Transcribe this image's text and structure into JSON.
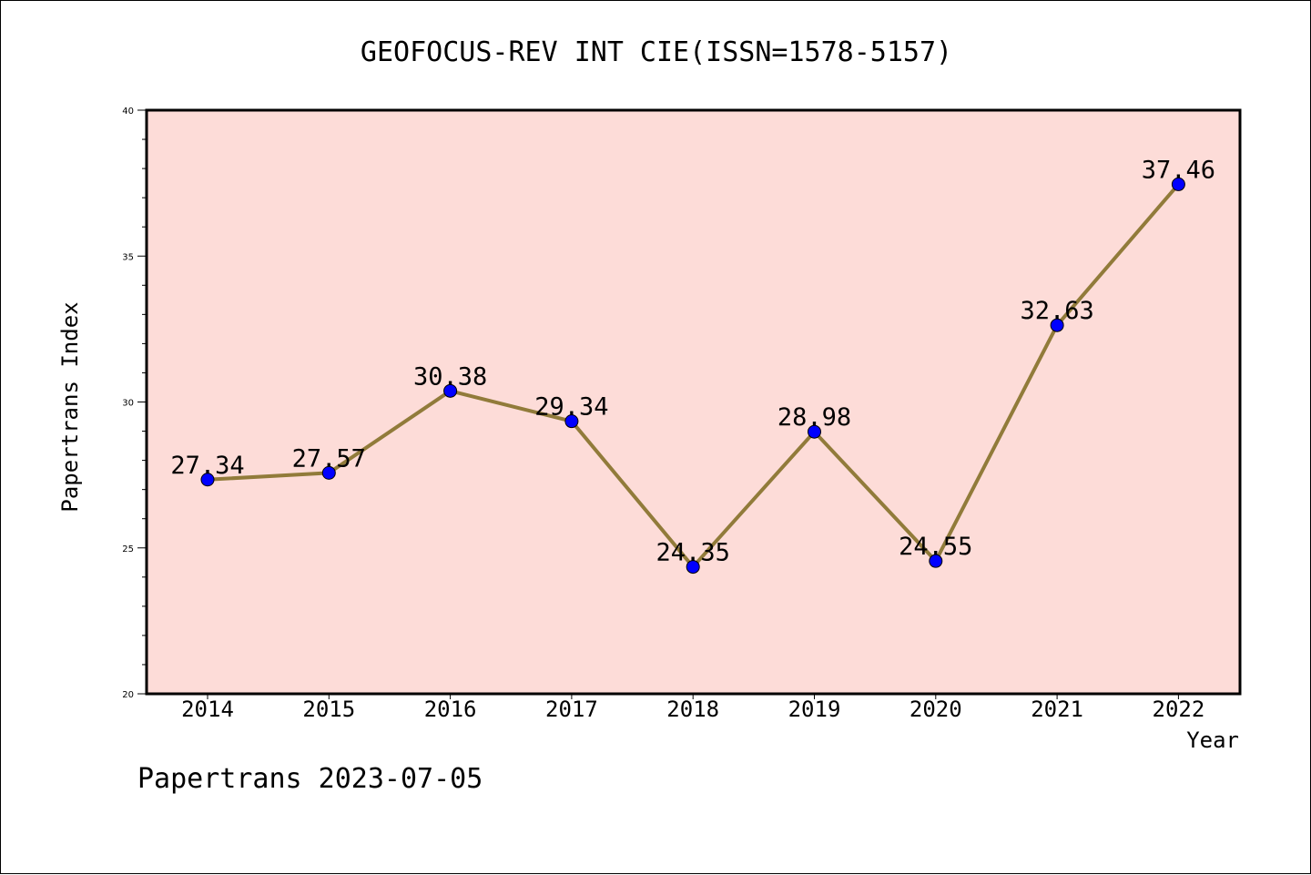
{
  "chart_data": {
    "type": "line",
    "title": "GEOFOCUS-REV INT CIE(ISSN=1578-5157)",
    "xlabel": "Year",
    "ylabel": "Papertrans Index",
    "categories": [
      "2014",
      "2015",
      "2016",
      "2017",
      "2018",
      "2019",
      "2020",
      "2021",
      "2022"
    ],
    "series": [
      {
        "values": [
          27.34,
          27.57,
          30.38,
          29.34,
          24.35,
          28.98,
          24.55,
          32.63,
          37.46
        ],
        "labels": [
          "27.34",
          "27.57",
          "30.38",
          "29.34",
          "24.35",
          "28.98",
          "24.55",
          "32.63",
          "37.46"
        ]
      }
    ],
    "ylim": [
      20,
      40
    ],
    "yticks": [
      "20",
      "25",
      "30",
      "35",
      "40"
    ],
    "grid": false,
    "legend": "none"
  },
  "footer": "Papertrans 2023-07-05",
  "colors": {
    "plot_background": "#fddcd8",
    "line": "#917b3a",
    "marker": "#0000ff",
    "frame": "#000000"
  }
}
